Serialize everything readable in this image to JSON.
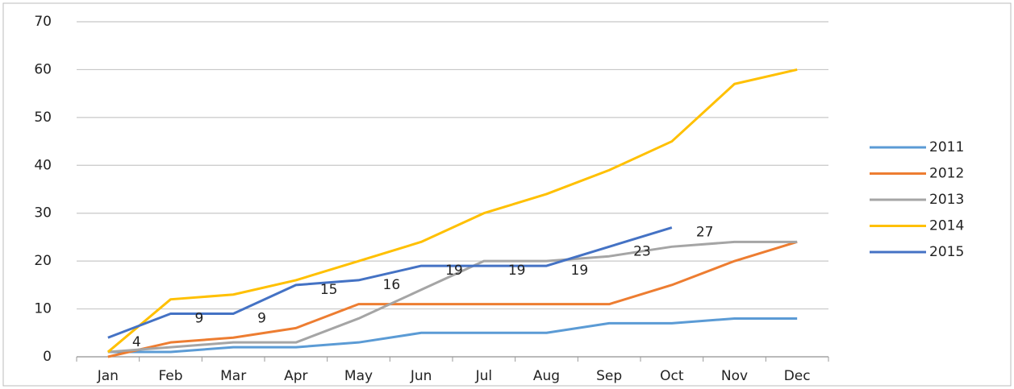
{
  "chart_data": {
    "type": "line",
    "categories": [
      "Jan",
      "Feb",
      "Mar",
      "Apr",
      "May",
      "Jun",
      "Jul",
      "Aug",
      "Sep",
      "Oct",
      "Nov",
      "Dec"
    ],
    "series": [
      {
        "name": "2011",
        "color": "#5b9bd5",
        "values": [
          1,
          1,
          2,
          2,
          3,
          5,
          5,
          5,
          7,
          7,
          8,
          8
        ]
      },
      {
        "name": "2012",
        "color": "#ed7d31",
        "values": [
          0,
          3,
          4,
          6,
          11,
          11,
          11,
          11,
          11,
          15,
          20,
          24
        ]
      },
      {
        "name": "2013",
        "color": "#a5a5a5",
        "values": [
          1,
          2,
          3,
          3,
          8,
          14,
          20,
          20,
          21,
          23,
          24,
          24
        ]
      },
      {
        "name": "2014",
        "color": "#ffc000",
        "values": [
          1,
          12,
          13,
          16,
          20,
          24,
          30,
          34,
          39,
          45,
          57,
          60
        ]
      },
      {
        "name": "2015",
        "color": "#4472c4",
        "values": [
          4,
          9,
          9,
          15,
          16,
          19,
          19,
          19,
          23,
          27,
          null,
          null
        ],
        "data_labels": true
      }
    ],
    "ylim": [
      0,
      70
    ],
    "yticks": [
      0,
      10,
      20,
      30,
      40,
      50,
      60,
      70
    ],
    "grid": true,
    "legend": "right"
  }
}
